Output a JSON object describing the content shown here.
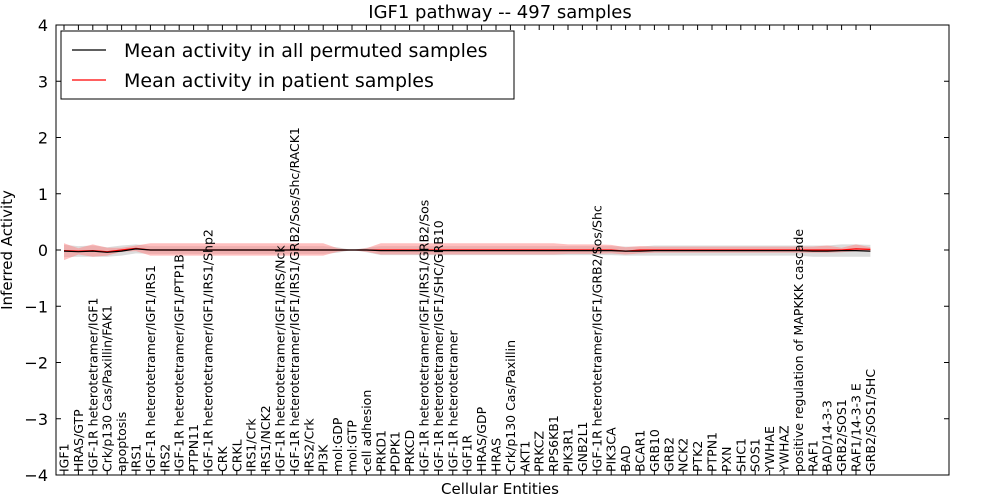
{
  "chart_data": {
    "type": "line",
    "title": "IGF1 pathway -- 497 samples",
    "xlabel": "Cellular Entities",
    "ylabel": "Inferred Activity",
    "ylim": [
      -4,
      4
    ],
    "yticks": [
      -4,
      -3,
      -2,
      -1,
      0,
      1,
      2,
      3,
      4
    ],
    "ytick_labels": [
      "−4",
      "−3",
      "−2",
      "−1",
      "0",
      "1",
      "2",
      "3",
      "4"
    ],
    "grid": false,
    "legend_position": "top-left",
    "categories": [
      "IGF1",
      "HRAS/GTP",
      "IGF-1R heterotetramer/IGF1",
      "Crk/p130 Cas/Paxillin/FAK1",
      "apoptosis",
      "IRS1",
      "IGF-1R heterotetramer/IGF1/IRS1",
      "IRS2",
      "IGF-1R heterotetramer/IGF1/PTP1B",
      "PTPN11",
      "IGF-1R heterotetramer/IGF1/IRS1/Shp2",
      "CRK",
      "CRKL",
      "IRS1/Crk",
      "IRS1/NCK2",
      "IGF-1R heterotetramer/IGF1/IRS/Nck",
      "IGF-1R heterotetramer/IGF1/IRS1/GRB2/Sos/Shc/RACK1",
      "IRS2/Crk",
      "PI3K",
      "mol:GDP",
      "mol:GTP",
      "cell adhesion",
      "PRKD1",
      "PDPK1",
      "PRKCD",
      "IGF-1R heterotetramer/IGF1/IRS1/GRB2/Sos",
      "IGF-1R heterotetramer/IGF1/SHC/GRB10",
      "IGF-1R heterotetramer",
      "IGF1R",
      "HRAS/GDP",
      "HRAS",
      "Crk/p130 Cas/Paxillin",
      "AKT1",
      "PRKCZ",
      "RPS6KB1",
      "PIK3R1",
      "GNB2L1",
      "IGF-1R heterotetramer/IGF1/GRB2/Sos/Shc",
      "PIK3CA",
      "BAD",
      "BCAR1",
      "GRB10",
      "GRB2",
      "NCK2",
      "PTK2",
      "PTPN1",
      "PXN",
      "SHC1",
      "SOS1",
      "YWHAE",
      "YWHAZ",
      "positive regulation of MAPKKK cascade",
      "RAF1",
      "BAD/14-3-3",
      "GRB2/SOS1",
      "RAF1/14-3-3 E",
      "GRB2/SOS1/SHC"
    ],
    "series": [
      {
        "name": "Mean activity in all permuted samples",
        "color": "#000000",
        "band_color": "#bfbfbf",
        "values": [
          -0.02,
          -0.03,
          -0.02,
          -0.04,
          -0.02,
          0.02,
          0.0,
          0.0,
          0.0,
          0.0,
          0.0,
          0.0,
          0.0,
          0.0,
          0.0,
          0.0,
          0.0,
          0.0,
          0.0,
          0.0,
          0.0,
          0.0,
          -0.01,
          -0.01,
          -0.01,
          -0.01,
          -0.01,
          -0.01,
          -0.01,
          -0.01,
          -0.01,
          -0.01,
          -0.01,
          -0.01,
          -0.01,
          -0.01,
          -0.01,
          -0.01,
          -0.01,
          -0.02,
          -0.02,
          -0.01,
          -0.01,
          -0.01,
          -0.01,
          -0.01,
          -0.01,
          -0.01,
          -0.01,
          -0.01,
          -0.01,
          -0.01,
          -0.02,
          -0.02,
          -0.01,
          -0.01,
          -0.02
        ],
        "lower": [
          -0.13,
          -0.12,
          -0.12,
          -0.12,
          -0.1,
          -0.06,
          -0.07,
          -0.07,
          -0.07,
          -0.07,
          -0.07,
          -0.07,
          -0.07,
          -0.07,
          -0.07,
          -0.07,
          -0.07,
          -0.07,
          -0.07,
          -0.05,
          0.0,
          -0.04,
          -0.09,
          -0.09,
          -0.09,
          -0.09,
          -0.09,
          -0.09,
          -0.09,
          -0.09,
          -0.09,
          -0.09,
          -0.09,
          -0.09,
          -0.09,
          -0.09,
          -0.09,
          -0.09,
          -0.09,
          -0.1,
          -0.1,
          -0.1,
          -0.1,
          -0.1,
          -0.1,
          -0.1,
          -0.1,
          -0.1,
          -0.1,
          -0.1,
          -0.1,
          -0.1,
          -0.12,
          -0.12,
          -0.12,
          -0.12,
          -0.12
        ],
        "upper": [
          0.09,
          0.07,
          0.08,
          0.05,
          0.08,
          0.1,
          0.07,
          0.07,
          0.07,
          0.07,
          0.07,
          0.07,
          0.07,
          0.07,
          0.07,
          0.07,
          0.07,
          0.07,
          0.07,
          0.05,
          0.0,
          0.04,
          0.07,
          0.07,
          0.07,
          0.07,
          0.07,
          0.07,
          0.07,
          0.07,
          0.07,
          0.07,
          0.07,
          0.07,
          0.07,
          0.07,
          0.07,
          0.07,
          0.07,
          0.06,
          0.06,
          0.08,
          0.08,
          0.08,
          0.08,
          0.08,
          0.08,
          0.08,
          0.08,
          0.08,
          0.08,
          0.08,
          0.08,
          0.08,
          0.1,
          0.1,
          0.09
        ]
      },
      {
        "name": "Mean activity in patient samples",
        "color": "#ff0000",
        "band_color": "#ff8080",
        "values": [
          -0.01,
          -0.02,
          -0.01,
          -0.03,
          0.0,
          0.03,
          0.0,
          0.0,
          0.0,
          0.0,
          0.0,
          0.0,
          0.0,
          0.0,
          0.0,
          0.0,
          0.0,
          0.0,
          0.0,
          0.0,
          0.0,
          0.0,
          0.0,
          0.0,
          0.0,
          0.0,
          0.0,
          0.0,
          0.0,
          0.0,
          0.0,
          0.0,
          0.0,
          0.0,
          0.0,
          0.0,
          0.0,
          0.0,
          0.0,
          -0.02,
          0.0,
          0.0,
          0.0,
          0.0,
          0.0,
          0.0,
          0.0,
          0.0,
          0.0,
          0.0,
          0.0,
          0.0,
          0.0,
          0.0,
          0.0,
          0.02,
          0.01
        ],
        "lower": [
          -0.18,
          -0.08,
          -0.12,
          -0.1,
          -0.03,
          -0.02,
          -0.1,
          -0.1,
          -0.1,
          -0.1,
          -0.1,
          -0.1,
          -0.1,
          -0.1,
          -0.1,
          -0.1,
          -0.1,
          -0.1,
          -0.1,
          -0.03,
          0.0,
          -0.03,
          -0.08,
          -0.08,
          -0.08,
          -0.08,
          -0.08,
          -0.08,
          -0.08,
          -0.08,
          -0.08,
          -0.08,
          -0.08,
          -0.08,
          -0.08,
          -0.07,
          -0.07,
          -0.07,
          -0.06,
          -0.08,
          -0.06,
          -0.05,
          -0.05,
          -0.05,
          -0.05,
          -0.05,
          -0.05,
          -0.05,
          -0.05,
          -0.05,
          -0.05,
          -0.05,
          -0.05,
          -0.05,
          -0.04,
          -0.02,
          -0.03
        ],
        "upper": [
          0.12,
          0.03,
          0.1,
          0.04,
          0.04,
          0.08,
          0.12,
          0.12,
          0.12,
          0.12,
          0.12,
          0.12,
          0.12,
          0.12,
          0.12,
          0.12,
          0.12,
          0.12,
          0.12,
          0.03,
          0.0,
          0.03,
          0.12,
          0.12,
          0.12,
          0.12,
          0.12,
          0.12,
          0.12,
          0.12,
          0.12,
          0.12,
          0.12,
          0.12,
          0.12,
          0.1,
          0.1,
          0.1,
          0.09,
          0.05,
          0.07,
          0.06,
          0.06,
          0.06,
          0.06,
          0.06,
          0.06,
          0.06,
          0.06,
          0.06,
          0.06,
          0.06,
          0.06,
          0.08,
          0.04,
          0.1,
          0.05
        ]
      }
    ]
  }
}
